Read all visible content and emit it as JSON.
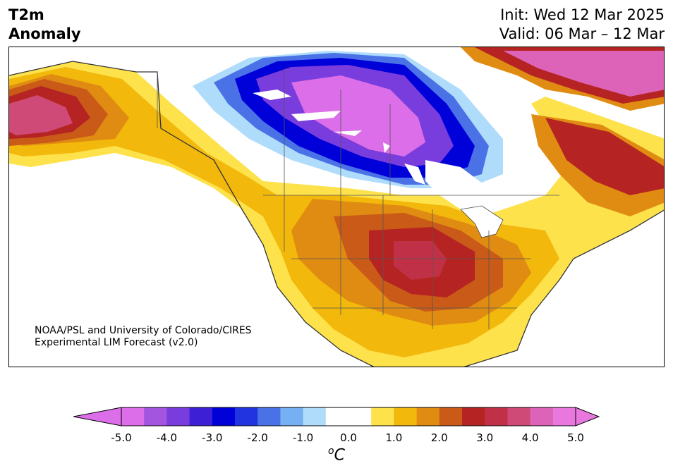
{
  "title": {
    "line1": "T2m",
    "line2": "Anomaly"
  },
  "dates": {
    "init": "Init: Wed 12 Mar 2025",
    "valid": "Valid: 06 Mar – 12 Mar"
  },
  "credit": {
    "line1": "NOAA/PSL and University of Colorado/CIRES",
    "line2": "Experimental LIM Forecast (v2.0)"
  },
  "colorbar": {
    "ticks": [
      "-5.0",
      "-4.0",
      "-3.0",
      "-2.0",
      "-1.0",
      "0.0",
      "1.0",
      "2.0",
      "3.0",
      "4.0",
      "5.0"
    ],
    "colors": [
      "#dc6fe9",
      "#a455df",
      "#7a3ddd",
      "#3d20d6",
      "#0000d9",
      "#2233e0",
      "#4a72e6",
      "#76b0f2",
      "#b0dcfb",
      "#ffffff",
      "#ffffff",
      "#fde24c",
      "#f2b80c",
      "#e08c12",
      "#c95a17",
      "#b52422",
      "#c03148",
      "#cf4a77",
      "#dc63b7",
      "#e878de"
    ],
    "unit_base": "o",
    "unit_symbol": "C"
  }
}
